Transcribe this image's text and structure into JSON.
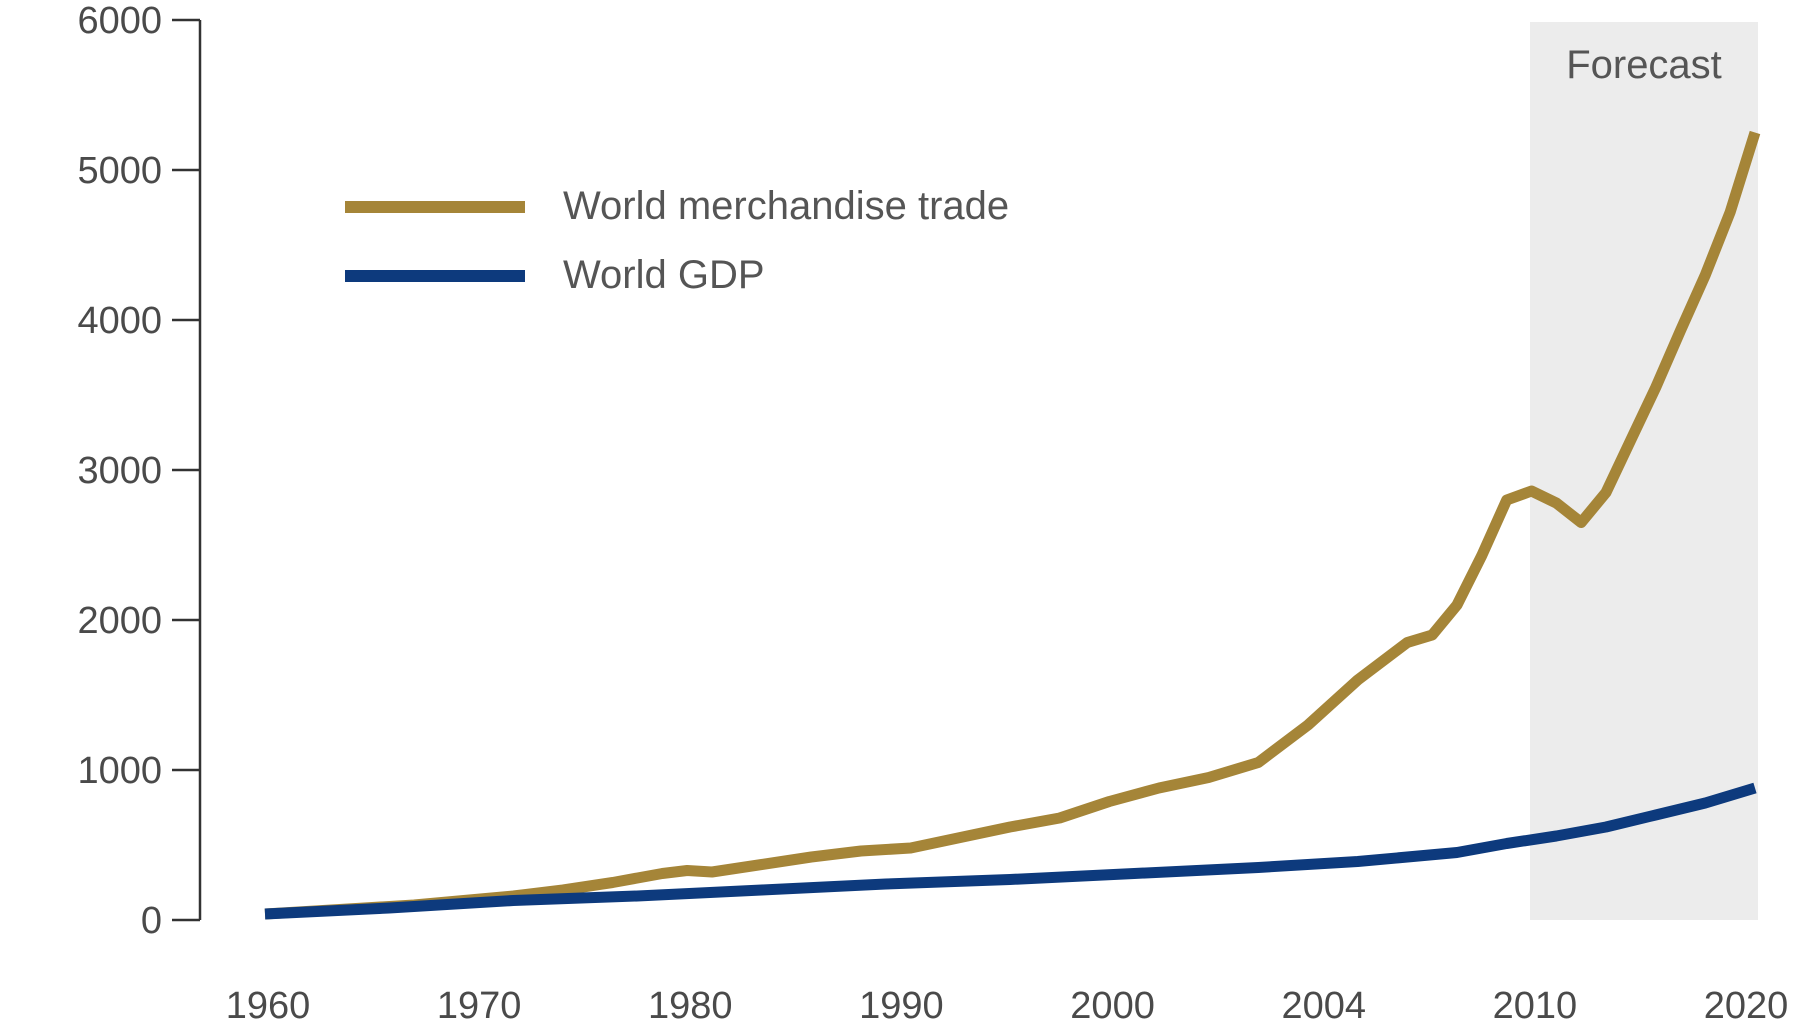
{
  "chart_data": {
    "type": "line",
    "title": "",
    "xlabel": "",
    "ylabel": "",
    "ylim": [
      0,
      6000
    ],
    "xlim": [
      1960,
      2020
    ],
    "grid": false,
    "legend": "top-left",
    "y_ticks": [
      "0",
      "1000",
      "2000",
      "3000",
      "4000",
      "5000",
      "6000"
    ],
    "x_tick_labels": [
      "1960",
      "1970",
      "1980",
      "1990",
      "2000",
      "2004",
      "2010",
      "2020"
    ],
    "forecast": {
      "label": "Forecast",
      "start": 2010,
      "end": 2020
    },
    "series": [
      {
        "name": "World merchandise trade",
        "color": "#a58538",
        "x": [
          1960,
          1962,
          1964,
          1966,
          1968,
          1970,
          1972,
          1974,
          1976,
          1977,
          1978,
          1980,
          1982,
          1984,
          1986,
          1988,
          1990,
          1992,
          1994,
          1996,
          1998,
          2000,
          2002,
          2004,
          2006,
          2007,
          2008,
          2009,
          2010,
          2011,
          2012,
          2013,
          2014,
          2015,
          2016,
          2017,
          2018,
          2019,
          2020
        ],
        "y": [
          40,
          60,
          80,
          100,
          130,
          160,
          200,
          250,
          310,
          330,
          320,
          370,
          420,
          460,
          480,
          550,
          620,
          680,
          790,
          880,
          950,
          1050,
          1300,
          1600,
          1850,
          1900,
          2100,
          2430,
          2800,
          2860,
          2780,
          2650,
          2850,
          3200,
          3550,
          3930,
          4300,
          4720,
          5250
        ]
      },
      {
        "name": "World GDP",
        "color": "#0d3a7d",
        "x": [
          1960,
          1965,
          1970,
          1975,
          1980,
          1985,
          1990,
          1995,
          2000,
          2004,
          2008,
          2010,
          2012,
          2014,
          2016,
          2018,
          2020
        ],
        "y": [
          40,
          80,
          130,
          160,
          200,
          240,
          270,
          310,
          350,
          390,
          450,
          510,
          560,
          620,
          700,
          780,
          880
        ]
      }
    ]
  }
}
